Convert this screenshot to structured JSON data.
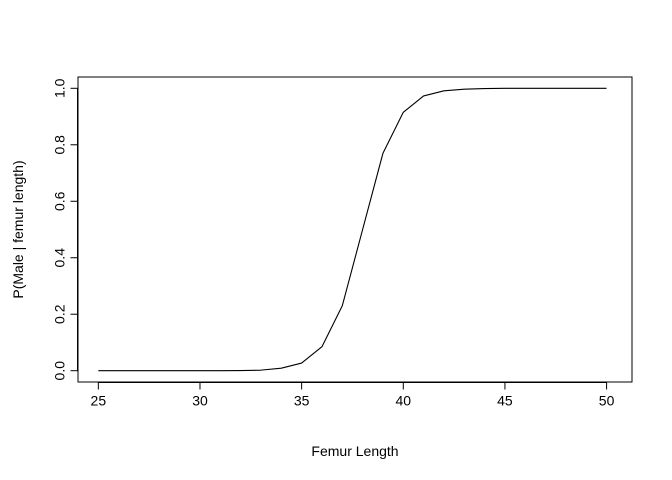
{
  "chart_data": {
    "type": "line",
    "title": "",
    "xlabel": "Femur Length",
    "ylabel": "P(Male | femur length)",
    "xlim": [
      24,
      51.25
    ],
    "ylim": [
      -0.04,
      1.04
    ],
    "grid": false,
    "x_ticks": [
      25,
      30,
      35,
      40,
      45,
      50
    ],
    "x_tick_labels": [
      "25",
      "30",
      "35",
      "40",
      "45",
      "50"
    ],
    "y_ticks": [
      0.0,
      0.2,
      0.4,
      0.6,
      0.8,
      1.0
    ],
    "y_tick_labels": [
      "0.0",
      "0.2",
      "0.4",
      "0.6",
      "0.8",
      "1.0"
    ],
    "series": [
      {
        "color": "#000000",
        "x": [
          25,
          26,
          27,
          28,
          29,
          30,
          31,
          32,
          33,
          34,
          35,
          36,
          37,
          38,
          39,
          40,
          41,
          42,
          43,
          44,
          45,
          46,
          47,
          48,
          49,
          50
        ],
        "y": [
          0.0,
          0.0,
          0.0,
          0.0,
          0.0,
          0.0,
          0.0,
          0.0005,
          0.002,
          0.009,
          0.027,
          0.085,
          0.23,
          0.5,
          0.77,
          0.915,
          0.973,
          0.991,
          0.997,
          0.999,
          1.0,
          1.0,
          1.0,
          1.0,
          1.0,
          1.0
        ]
      }
    ]
  }
}
